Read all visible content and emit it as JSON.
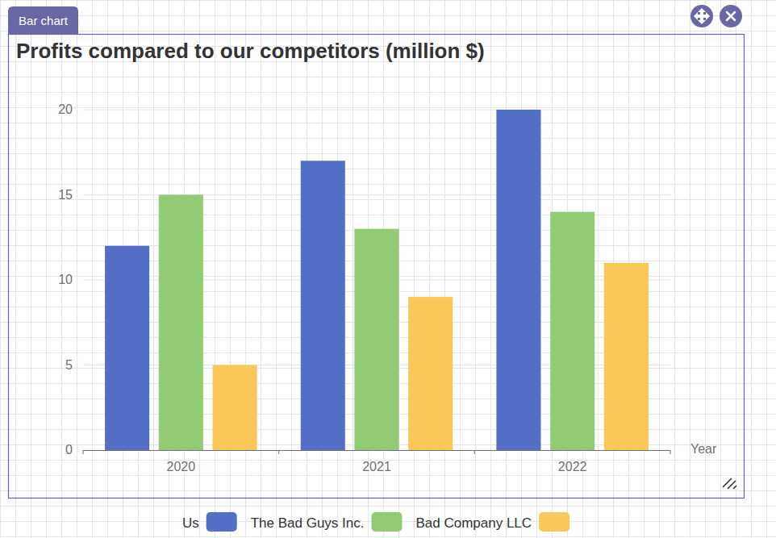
{
  "widget": {
    "label": "Bar chart"
  },
  "chart_data": {
    "type": "bar",
    "title": "Profits compared to our competitors (million $)",
    "x_label": "Year",
    "categories": [
      "2020",
      "2021",
      "2022"
    ],
    "series": [
      {
        "name": "Us",
        "color": "#5470c6",
        "values": [
          12,
          17,
          20
        ]
      },
      {
        "name": "The Bad Guys Inc.",
        "color": "#91cc75",
        "values": [
          15,
          13,
          14
        ]
      },
      {
        "name": "Bad Company LLC",
        "color": "#fac858",
        "values": [
          5,
          9,
          11
        ]
      }
    ],
    "ylim": [
      0,
      20
    ],
    "yticks": [
      0,
      5,
      10,
      15,
      20
    ],
    "grid": true,
    "legend": "bottom"
  }
}
